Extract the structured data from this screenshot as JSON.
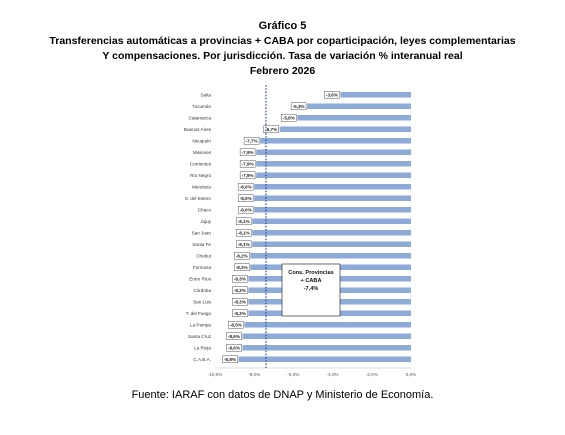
{
  "chart_data": {
    "type": "bar",
    "orientation": "horizontal",
    "title": "Gráfico 5",
    "subtitle": [
      "Transferencias automáticas a provincias + CABA por coparticipación, leyes complementarias",
      "Y compensaciones. Por jurisdicción. Tasa de variación % interanual real",
      "Febrero 2026"
    ],
    "categories": [
      "Salta",
      "Tucumán",
      "Catamarca",
      "Buenos Aires",
      "Neuquén",
      "Misiones",
      "Corrientes",
      "Río Negro",
      "Mendoza",
      "S. del Estero",
      "Chaco",
      "Jujuy",
      "San Juan",
      "Santa Fe",
      "Chubut",
      "Formosa",
      "Entre Ríos",
      "Córdoba",
      "San Luis",
      "T. del Fuego",
      "La Pampa",
      "Santa Cruz",
      "La Rioja",
      "C.A.B.A."
    ],
    "values": [
      -3.6,
      -5.3,
      -5.8,
      -6.7,
      -7.7,
      -7.9,
      -7.9,
      -7.9,
      -8.0,
      -8.0,
      -8.0,
      -8.1,
      -8.1,
      -8.1,
      -8.2,
      -8.2,
      -8.3,
      -8.3,
      -8.3,
      -8.3,
      -8.5,
      -8.6,
      -8.6,
      -8.8
    ],
    "value_labels": [
      "-3,6%",
      "-5,3%",
      "-5,8%",
      "-6,7%",
      "-7,7%",
      "-7,9%",
      "-7,9%",
      "-7,9%",
      "-8,0%",
      "-8,0%",
      "-8,0%",
      "-8,1%",
      "-8,1%",
      "-8,1%",
      "-8,2%",
      "-8,2%",
      "-8,3%",
      "-8,3%",
      "-8,3%",
      "-8,3%",
      "-8,5%",
      "-8,6%",
      "-8,6%",
      "-8,8%"
    ],
    "xlim": [
      -10,
      0
    ],
    "xticks": [
      "-10,0%",
      "-8,0%",
      "-6,0%",
      "-4,0%",
      "-2,0%",
      "0,0%"
    ],
    "reference_line": {
      "value": -7.4,
      "label_lines": [
        "Cons. Provincias",
        "+ CABA",
        "-7,4%"
      ]
    },
    "bar_color": "#8eaad7",
    "grid": false
  },
  "footer": {
    "source": "Fuente: IARAF con datos de DNAP y Ministerio de Economía."
  }
}
